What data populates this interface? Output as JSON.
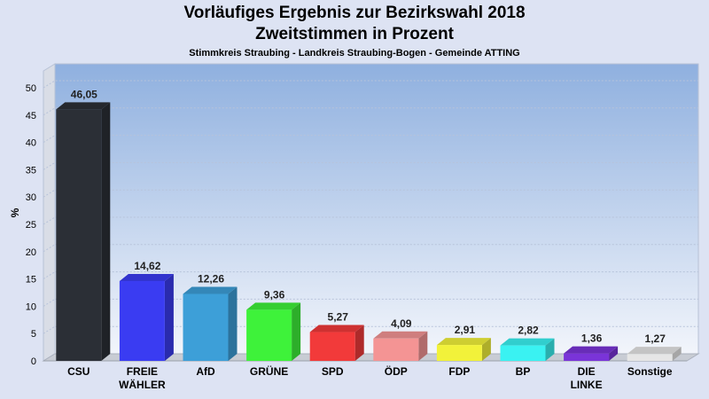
{
  "header": {
    "title": "Vorläufiges Ergebnis zur Bezirkswahl 2018",
    "subtitle": "Zweitstimmen in Prozent",
    "caption": "Stimmkreis Straubing - Landkreis Straubing-Bogen - Gemeinde ATTING"
  },
  "chart_data": {
    "type": "bar",
    "title": "Vorläufiges Ergebnis zur Bezirkswahl 2018",
    "subtitle": "Zweitstimmen in Prozent",
    "xlabel": "",
    "ylabel": "%",
    "ylim": [
      0,
      50
    ],
    "yticks": [
      0,
      5,
      10,
      15,
      20,
      25,
      30,
      35,
      40,
      45,
      50
    ],
    "grid": true,
    "categories": [
      "CSU",
      "FREIE WÄHLER",
      "AfD",
      "GRÜNE",
      "SPD",
      "ÖDP",
      "FDP",
      "BP",
      "DIE LINKE",
      "Sonstige"
    ],
    "category_lines": [
      [
        "CSU"
      ],
      [
        "FREIE",
        "WÄHLER"
      ],
      [
        "AfD"
      ],
      [
        "GRÜNE"
      ],
      [
        "SPD"
      ],
      [
        "ÖDP"
      ],
      [
        "FDP"
      ],
      [
        "BP"
      ],
      [
        "DIE",
        "LINKE"
      ],
      [
        "Sonstige"
      ]
    ],
    "values": [
      46.05,
      14.62,
      12.26,
      9.36,
      5.27,
      4.09,
      2.91,
      2.82,
      1.36,
      1.27
    ],
    "value_labels": [
      "46,05",
      "14,62",
      "12,26",
      "9,36",
      "5,27",
      "4,09",
      "2,91",
      "2,82",
      "1,36",
      "1,27"
    ],
    "colors": [
      "#2b2f36",
      "#3a3cf2",
      "#3d9fd8",
      "#3ef23a",
      "#f23a3a",
      "#f49494",
      "#f2f23a",
      "#3af2f2",
      "#7a34d8",
      "#e6e6e6"
    ]
  }
}
